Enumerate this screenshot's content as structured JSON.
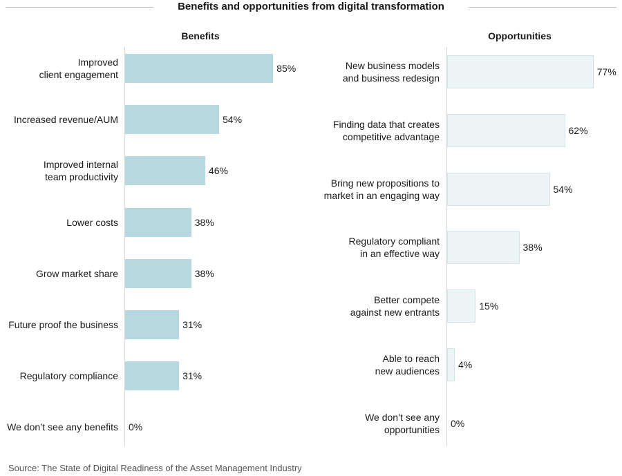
{
  "title": "Benefits and opportunities from digital transformation",
  "source": "Source: The State of Digital Readiness of the Asset Management Industry",
  "chart_data": [
    {
      "type": "bar",
      "orientation": "horizontal",
      "title": "Benefits",
      "categories": [
        "Improved\nclient engagement",
        "Increased revenue/AUM",
        "Improved internal\nteam productivity",
        "Lower costs",
        "Grow market share",
        "Future proof the business",
        "Regulatory compliance",
        "We don’t see any benefits"
      ],
      "values": [
        85,
        54,
        46,
        38,
        38,
        31,
        31,
        0
      ],
      "value_labels": [
        "85%",
        "54%",
        "46%",
        "38%",
        "38%",
        "31%",
        "31%",
        "0%"
      ],
      "bar_color": "#b7d8df"
    },
    {
      "type": "bar",
      "orientation": "horizontal",
      "title": "Opportunities",
      "categories": [
        "New business models\nand business redesign",
        "Finding data that creates\ncompetitive advantage",
        "Bring new propositions to\nmarket in an engaging way",
        "Regulatory compliant\nin an effective way",
        "Better compete\nagainst new entrants",
        "Able to reach\nnew audiences",
        "We don’t see any\nopportunities"
      ],
      "values": [
        77,
        62,
        54,
        38,
        15,
        4,
        0
      ],
      "value_labels": [
        "77%",
        "62%",
        "54%",
        "38%",
        "15%",
        "4%",
        "0%"
      ],
      "bar_color": "#edf4f6"
    }
  ]
}
